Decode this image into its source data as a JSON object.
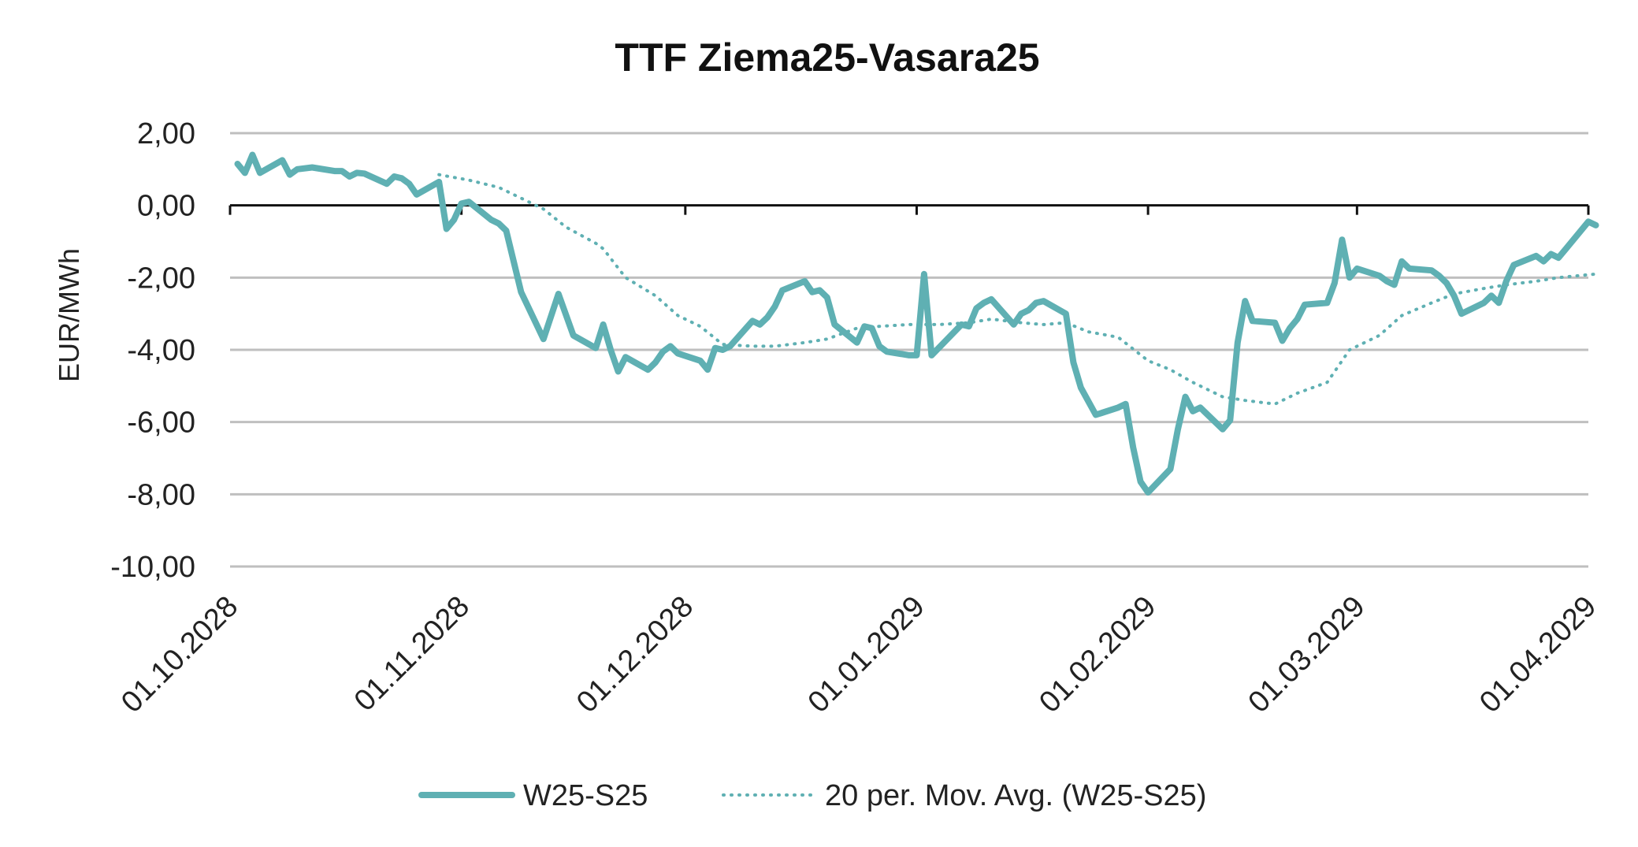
{
  "chart_data": {
    "type": "line",
    "title": "TTF Ziema25-Vasara25",
    "ylabel": "EUR/MWh",
    "xlabel": "",
    "ylim": [
      -10,
      2
    ],
    "yticks": [
      2,
      0,
      -2,
      -4,
      -6,
      -8,
      -10
    ],
    "ytick_labels": [
      "2,00",
      "0,00",
      "-2,00",
      "-4,00",
      "-6,00",
      "-8,00",
      "-10,00"
    ],
    "xlim": [
      "2028-10-01",
      "2029-04-01"
    ],
    "xticks": [
      "2028-10-01",
      "2028-11-01",
      "2028-12-01",
      "2029-01-01",
      "2029-02-01",
      "2029-03-01",
      "2029-04-01"
    ],
    "xtick_labels": [
      "01.10.2028",
      "01.11.2028",
      "01.12.2028",
      "01.01.2029",
      "01.02.2029",
      "01.03.2029",
      "01.04.2029"
    ],
    "grid": true,
    "legend_position": "bottom",
    "series": [
      {
        "name": "W25-S25",
        "color": "#5fb0b3",
        "style": "solid",
        "points": [
          [
            "2028-10-02",
            1.15
          ],
          [
            "2028-10-03",
            0.9
          ],
          [
            "2028-10-04",
            1.4
          ],
          [
            "2028-10-05",
            0.9
          ],
          [
            "2028-10-08",
            1.25
          ],
          [
            "2028-10-09",
            0.85
          ],
          [
            "2028-10-10",
            1.0
          ],
          [
            "2028-10-12",
            1.05
          ],
          [
            "2028-10-15",
            0.95
          ],
          [
            "2028-10-16",
            0.95
          ],
          [
            "2028-10-17",
            0.8
          ],
          [
            "2028-10-18",
            0.9
          ],
          [
            "2028-10-19",
            0.88
          ],
          [
            "2028-10-22",
            0.6
          ],
          [
            "2028-10-23",
            0.8
          ],
          [
            "2028-10-24",
            0.75
          ],
          [
            "2028-10-25",
            0.6
          ],
          [
            "2028-10-26",
            0.3
          ],
          [
            "2028-10-29",
            0.65
          ],
          [
            "2028-10-30",
            -0.65
          ],
          [
            "2028-10-31",
            -0.4
          ],
          [
            "2028-11-01",
            0.05
          ],
          [
            "2028-11-02",
            0.1
          ],
          [
            "2028-11-05",
            -0.4
          ],
          [
            "2028-11-06",
            -0.5
          ],
          [
            "2028-11-07",
            -0.7
          ],
          [
            "2028-11-09",
            -2.4
          ],
          [
            "2028-11-12",
            -3.7
          ],
          [
            "2028-11-14",
            -2.45
          ],
          [
            "2028-11-16",
            -3.6
          ],
          [
            "2028-11-19",
            -3.95
          ],
          [
            "2028-11-20",
            -3.3
          ],
          [
            "2028-11-21",
            -4.0
          ],
          [
            "2028-11-22",
            -4.6
          ],
          [
            "2028-11-23",
            -4.2
          ],
          [
            "2028-11-26",
            -4.55
          ],
          [
            "2028-11-27",
            -4.35
          ],
          [
            "2028-11-28",
            -4.05
          ],
          [
            "2028-11-29",
            -3.9
          ],
          [
            "2028-11-30",
            -4.1
          ],
          [
            "2028-12-03",
            -4.3
          ],
          [
            "2028-12-04",
            -4.55
          ],
          [
            "2028-12-05",
            -3.95
          ],
          [
            "2028-12-06",
            -4.0
          ],
          [
            "2028-12-07",
            -3.9
          ],
          [
            "2028-12-10",
            -3.2
          ],
          [
            "2028-12-11",
            -3.3
          ],
          [
            "2028-12-12",
            -3.1
          ],
          [
            "2028-12-13",
            -2.8
          ],
          [
            "2028-12-14",
            -2.35
          ],
          [
            "2028-12-17",
            -2.1
          ],
          [
            "2028-12-18",
            -2.4
          ],
          [
            "2028-12-19",
            -2.35
          ],
          [
            "2028-12-20",
            -2.55
          ],
          [
            "2028-12-21",
            -3.3
          ],
          [
            "2028-12-24",
            -3.8
          ],
          [
            "2028-12-25",
            -3.35
          ],
          [
            "2028-12-26",
            -3.4
          ],
          [
            "2028-12-27",
            -3.9
          ],
          [
            "2028-12-28",
            -4.05
          ],
          [
            "2028-12-31",
            -4.15
          ],
          [
            "2029-01-01",
            -4.15
          ],
          [
            "2029-01-02",
            -1.9
          ],
          [
            "2029-01-03",
            -4.15
          ],
          [
            "2029-01-07",
            -3.3
          ],
          [
            "2029-01-08",
            -3.35
          ],
          [
            "2029-01-09",
            -2.85
          ],
          [
            "2029-01-10",
            -2.7
          ],
          [
            "2029-01-11",
            -2.6
          ],
          [
            "2029-01-14",
            -3.3
          ],
          [
            "2029-01-15",
            -3.0
          ],
          [
            "2029-01-16",
            -2.9
          ],
          [
            "2029-01-17",
            -2.7
          ],
          [
            "2029-01-18",
            -2.65
          ],
          [
            "2029-01-21",
            -3.0
          ],
          [
            "2029-01-22",
            -4.35
          ],
          [
            "2029-01-23",
            -5.05
          ],
          [
            "2029-01-25",
            -5.8
          ],
          [
            "2029-01-28",
            -5.6
          ],
          [
            "2029-01-29",
            -5.5
          ],
          [
            "2029-01-30",
            -6.7
          ],
          [
            "2029-01-31",
            -7.65
          ],
          [
            "2029-02-01",
            -7.95
          ],
          [
            "2029-02-04",
            -7.3
          ],
          [
            "2029-02-05",
            -6.2
          ],
          [
            "2029-02-06",
            -5.3
          ],
          [
            "2029-02-07",
            -5.7
          ],
          [
            "2029-02-08",
            -5.6
          ],
          [
            "2029-02-11",
            -6.2
          ],
          [
            "2029-02-12",
            -5.95
          ],
          [
            "2029-02-13",
            -3.8
          ],
          [
            "2029-02-14",
            -2.65
          ],
          [
            "2029-02-15",
            -3.2
          ],
          [
            "2029-02-18",
            -3.25
          ],
          [
            "2029-02-19",
            -3.75
          ],
          [
            "2029-02-20",
            -3.4
          ],
          [
            "2029-02-21",
            -3.15
          ],
          [
            "2029-02-22",
            -2.75
          ],
          [
            "2029-02-25",
            -2.7
          ],
          [
            "2029-02-26",
            -2.15
          ],
          [
            "2029-02-27",
            -0.95
          ],
          [
            "2029-02-28",
            -2.0
          ],
          [
            "2029-03-01",
            -1.75
          ],
          [
            "2029-03-04",
            -1.95
          ],
          [
            "2029-03-05",
            -2.1
          ],
          [
            "2029-03-06",
            -2.2
          ],
          [
            "2029-03-07",
            -1.55
          ],
          [
            "2029-03-08",
            -1.75
          ],
          [
            "2029-03-11",
            -1.8
          ],
          [
            "2029-03-12",
            -1.95
          ],
          [
            "2029-03-13",
            -2.15
          ],
          [
            "2029-03-14",
            -2.5
          ],
          [
            "2029-03-15",
            -3.0
          ],
          [
            "2029-03-18",
            -2.7
          ],
          [
            "2029-03-19",
            -2.5
          ],
          [
            "2029-03-20",
            -2.7
          ],
          [
            "2029-03-21",
            -2.1
          ],
          [
            "2029-03-22",
            -1.65
          ],
          [
            "2029-03-25",
            -1.4
          ],
          [
            "2029-03-26",
            -1.55
          ],
          [
            "2029-03-27",
            -1.35
          ],
          [
            "2029-03-28",
            -1.45
          ],
          [
            "2029-03-29",
            -1.2
          ],
          [
            "2029-04-01",
            -0.45
          ],
          [
            "2029-04-02",
            -0.55
          ]
        ]
      },
      {
        "name": "20 per. Mov. Avg. (W25-S25)",
        "color": "#5fb0b3",
        "style": "dotted",
        "points": [
          [
            "2028-10-29",
            0.85
          ],
          [
            "2028-11-02",
            0.7
          ],
          [
            "2028-11-06",
            0.5
          ],
          [
            "2028-11-09",
            0.2
          ],
          [
            "2028-11-12",
            -0.1
          ],
          [
            "2028-11-15",
            -0.6
          ],
          [
            "2028-11-19",
            -1.05
          ],
          [
            "2028-11-20",
            -1.2
          ],
          [
            "2028-11-23",
            -2.0
          ],
          [
            "2028-11-27",
            -2.5
          ],
          [
            "2028-11-30",
            -3.05
          ],
          [
            "2028-12-03",
            -3.35
          ],
          [
            "2028-12-06",
            -3.85
          ],
          [
            "2028-12-10",
            -3.9
          ],
          [
            "2028-12-13",
            -3.9
          ],
          [
            "2028-12-17",
            -3.8
          ],
          [
            "2028-12-20",
            -3.7
          ],
          [
            "2028-12-24",
            -3.4
          ],
          [
            "2028-12-27",
            -3.35
          ],
          [
            "2028-12-31",
            -3.3
          ],
          [
            "2029-01-04",
            -3.3
          ],
          [
            "2029-01-08",
            -3.25
          ],
          [
            "2029-01-11",
            -3.15
          ],
          [
            "2029-01-15",
            -3.25
          ],
          [
            "2029-01-18",
            -3.3
          ],
          [
            "2029-01-21",
            -3.25
          ],
          [
            "2029-01-24",
            -3.5
          ],
          [
            "2029-01-28",
            -3.65
          ],
          [
            "2029-02-01",
            -4.3
          ],
          [
            "2029-02-04",
            -4.55
          ],
          [
            "2029-02-07",
            -4.9
          ],
          [
            "2029-02-11",
            -5.3
          ],
          [
            "2029-02-14",
            -5.4
          ],
          [
            "2029-02-18",
            -5.5
          ],
          [
            "2029-02-21",
            -5.2
          ],
          [
            "2029-02-25",
            -4.9
          ],
          [
            "2029-02-28",
            -4.0
          ],
          [
            "2029-03-04",
            -3.6
          ],
          [
            "2029-03-07",
            -3.05
          ],
          [
            "2029-03-11",
            -2.7
          ],
          [
            "2029-03-14",
            -2.45
          ],
          [
            "2029-03-18",
            -2.3
          ],
          [
            "2029-03-21",
            -2.2
          ],
          [
            "2029-03-25",
            -2.1
          ],
          [
            "2029-03-28",
            -2.0
          ],
          [
            "2029-04-02",
            -1.9
          ]
        ]
      }
    ]
  }
}
